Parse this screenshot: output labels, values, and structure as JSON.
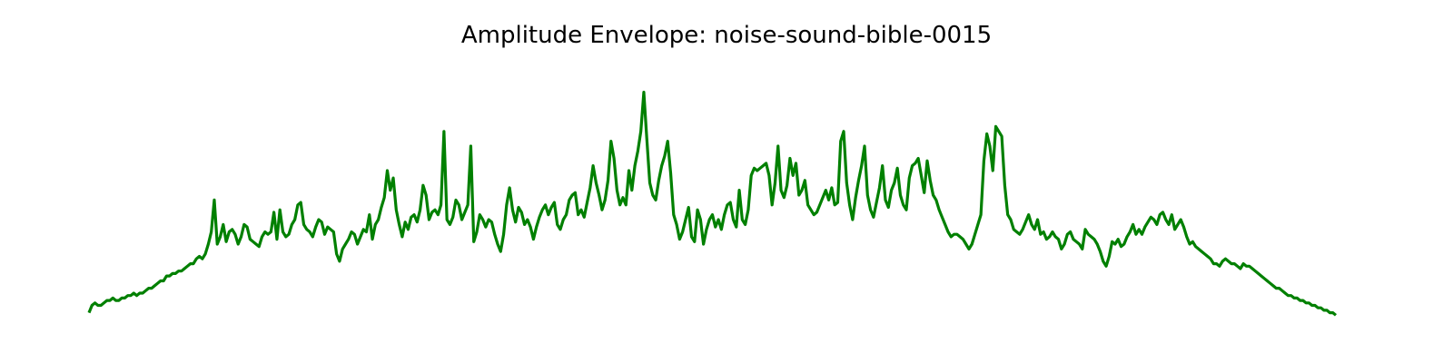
{
  "chart_data": {
    "type": "line",
    "title": "Amplitude Envelope: noise-sound-bible-0015",
    "xlabel": "",
    "ylabel": "",
    "axes_visible": false,
    "grid": false,
    "ylim": [
      0,
      1
    ],
    "series": [
      {
        "color": "#008000",
        "values": [
          0.02,
          0.05,
          0.06,
          0.05,
          0.05,
          0.06,
          0.07,
          0.07,
          0.08,
          0.07,
          0.07,
          0.08,
          0.08,
          0.09,
          0.09,
          0.1,
          0.09,
          0.1,
          0.1,
          0.11,
          0.12,
          0.12,
          0.13,
          0.14,
          0.15,
          0.15,
          0.17,
          0.17,
          0.18,
          0.18,
          0.19,
          0.19,
          0.2,
          0.21,
          0.22,
          0.22,
          0.24,
          0.25,
          0.24,
          0.26,
          0.3,
          0.35,
          0.48,
          0.3,
          0.33,
          0.38,
          0.31,
          0.35,
          0.36,
          0.34,
          0.3,
          0.33,
          0.38,
          0.37,
          0.32,
          0.31,
          0.3,
          0.29,
          0.33,
          0.35,
          0.34,
          0.35,
          0.43,
          0.32,
          0.44,
          0.35,
          0.33,
          0.34,
          0.38,
          0.4,
          0.46,
          0.47,
          0.38,
          0.36,
          0.35,
          0.33,
          0.37,
          0.4,
          0.39,
          0.34,
          0.37,
          0.36,
          0.35,
          0.26,
          0.23,
          0.28,
          0.3,
          0.32,
          0.35,
          0.34,
          0.3,
          0.33,
          0.36,
          0.35,
          0.42,
          0.32,
          0.38,
          0.4,
          0.45,
          0.49,
          0.6,
          0.52,
          0.57,
          0.44,
          0.38,
          0.33,
          0.39,
          0.36,
          0.41,
          0.42,
          0.39,
          0.44,
          0.54,
          0.5,
          0.4,
          0.43,
          0.44,
          0.42,
          0.46,
          0.76,
          0.4,
          0.38,
          0.41,
          0.48,
          0.46,
          0.4,
          0.43,
          0.46,
          0.7,
          0.31,
          0.35,
          0.42,
          0.4,
          0.37,
          0.4,
          0.39,
          0.34,
          0.3,
          0.27,
          0.34,
          0.46,
          0.53,
          0.44,
          0.39,
          0.45,
          0.43,
          0.38,
          0.4,
          0.37,
          0.32,
          0.37,
          0.41,
          0.44,
          0.46,
          0.42,
          0.45,
          0.47,
          0.38,
          0.36,
          0.4,
          0.42,
          0.48,
          0.5,
          0.51,
          0.42,
          0.44,
          0.41,
          0.47,
          0.53,
          0.62,
          0.55,
          0.5,
          0.44,
          0.48,
          0.56,
          0.72,
          0.65,
          0.52,
          0.46,
          0.49,
          0.46,
          0.6,
          0.52,
          0.62,
          0.68,
          0.76,
          0.92,
          0.73,
          0.55,
          0.5,
          0.48,
          0.56,
          0.62,
          0.66,
          0.72,
          0.59,
          0.42,
          0.38,
          0.32,
          0.35,
          0.4,
          0.45,
          0.33,
          0.31,
          0.44,
          0.4,
          0.3,
          0.36,
          0.4,
          0.42,
          0.37,
          0.4,
          0.36,
          0.42,
          0.46,
          0.47,
          0.4,
          0.37,
          0.52,
          0.4,
          0.38,
          0.44,
          0.58,
          0.61,
          0.6,
          0.61,
          0.62,
          0.63,
          0.58,
          0.46,
          0.55,
          0.7,
          0.52,
          0.49,
          0.54,
          0.65,
          0.58,
          0.63,
          0.5,
          0.52,
          0.56,
          0.46,
          0.44,
          0.42,
          0.43,
          0.46,
          0.49,
          0.52,
          0.48,
          0.53,
          0.46,
          0.47,
          0.72,
          0.76,
          0.55,
          0.46,
          0.4,
          0.49,
          0.56,
          0.62,
          0.7,
          0.5,
          0.44,
          0.41,
          0.47,
          0.53,
          0.62,
          0.48,
          0.45,
          0.52,
          0.55,
          0.61,
          0.5,
          0.46,
          0.44,
          0.57,
          0.62,
          0.63,
          0.65,
          0.58,
          0.51,
          0.64,
          0.56,
          0.5,
          0.48,
          0.44,
          0.41,
          0.38,
          0.35,
          0.33,
          0.34,
          0.34,
          0.33,
          0.32,
          0.3,
          0.28,
          0.3,
          0.34,
          0.38,
          0.42,
          0.64,
          0.75,
          0.7,
          0.6,
          0.78,
          0.76,
          0.74,
          0.54,
          0.42,
          0.4,
          0.36,
          0.35,
          0.34,
          0.36,
          0.39,
          0.42,
          0.38,
          0.36,
          0.4,
          0.34,
          0.35,
          0.32,
          0.33,
          0.35,
          0.33,
          0.32,
          0.28,
          0.3,
          0.34,
          0.35,
          0.32,
          0.31,
          0.3,
          0.28,
          0.36,
          0.34,
          0.33,
          0.32,
          0.3,
          0.27,
          0.23,
          0.21,
          0.25,
          0.31,
          0.3,
          0.32,
          0.29,
          0.3,
          0.33,
          0.35,
          0.38,
          0.34,
          0.36,
          0.34,
          0.37,
          0.39,
          0.41,
          0.4,
          0.38,
          0.42,
          0.43,
          0.4,
          0.38,
          0.42,
          0.36,
          0.38,
          0.4,
          0.37,
          0.33,
          0.3,
          0.31,
          0.29,
          0.28,
          0.27,
          0.26,
          0.25,
          0.24,
          0.22,
          0.22,
          0.21,
          0.23,
          0.24,
          0.23,
          0.22,
          0.22,
          0.21,
          0.2,
          0.22,
          0.21,
          0.21,
          0.2,
          0.19,
          0.18,
          0.17,
          0.16,
          0.15,
          0.14,
          0.13,
          0.12,
          0.12,
          0.11,
          0.1,
          0.09,
          0.09,
          0.08,
          0.08,
          0.07,
          0.07,
          0.06,
          0.06,
          0.05,
          0.05,
          0.04,
          0.04,
          0.03,
          0.03,
          0.02,
          0.02,
          0.01
        ]
      }
    ]
  }
}
